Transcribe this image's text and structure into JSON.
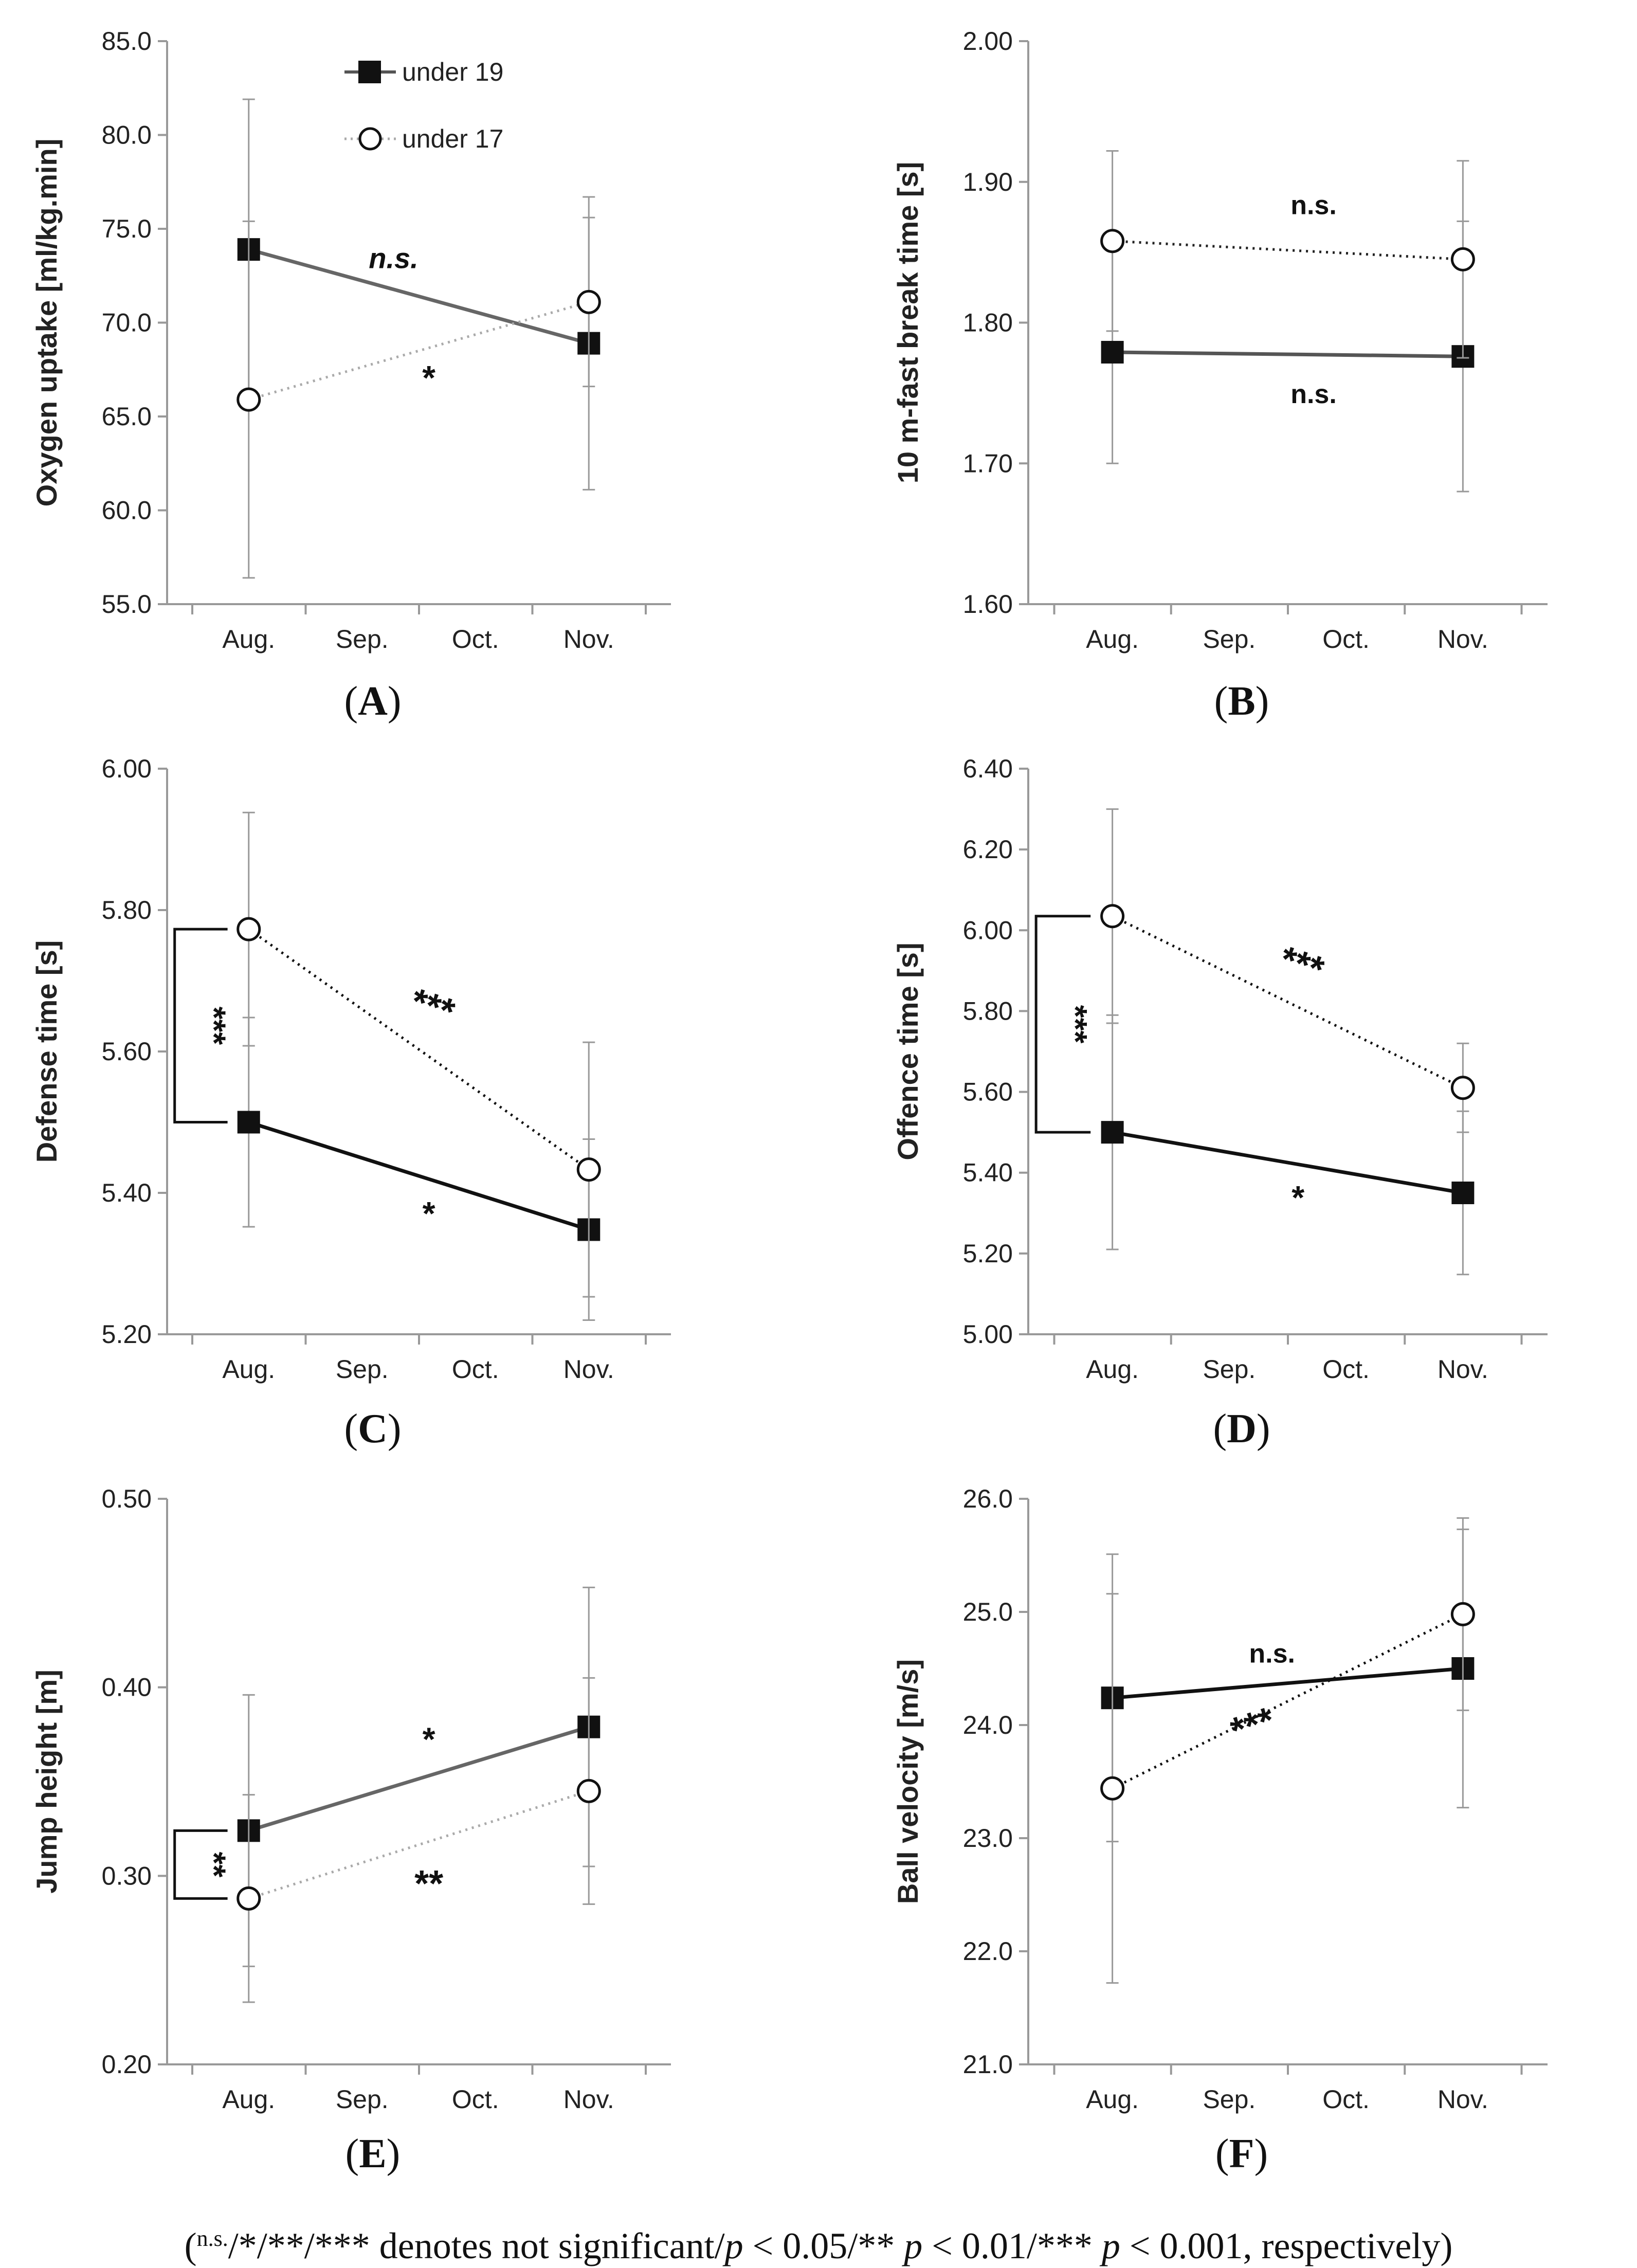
{
  "legend": {
    "series1": "under 19",
    "series2": "under 17"
  },
  "caption": {
    "prefix": "(",
    "ns": "n.s.",
    "rest": "/*/**/*** denotes not significant/",
    "p1": "p",
    "t1": " < 0.05/** ",
    "p2": "p",
    "t2": " < 0.01/*** ",
    "p3": "p",
    "t3": " < 0.001, respectively)"
  },
  "chart_data": [
    {
      "panel": "A",
      "panel_label_open": "(",
      "panel_label_close": ")",
      "type": "line",
      "ylabel": "Oxygen uptake [ml/kg.min]",
      "categories": [
        "Aug.",
        "Sep.",
        "Oct.",
        "Nov."
      ],
      "ylim": [
        55.0,
        85.0
      ],
      "yticks": [
        "55.0",
        "60.0",
        "65.0",
        "70.0",
        "75.0",
        "80.0",
        "85.0"
      ],
      "series": [
        {
          "name": "under 19",
          "marker": "square",
          "line": "solid",
          "color": "#666666",
          "x": [
            "Aug.",
            "Nov."
          ],
          "values": [
            73.9,
            68.9
          ],
          "err_low": [
            65.9,
            61.1
          ],
          "err_high": [
            81.9,
            76.7
          ],
          "sig": "n.s."
        },
        {
          "name": "under 17",
          "marker": "circle",
          "line": "dotted",
          "color": "#aaaaaa",
          "x": [
            "Aug.",
            "Nov."
          ],
          "values": [
            65.9,
            71.1
          ],
          "err_low": [
            56.4,
            66.6
          ],
          "err_high": [
            75.4,
            75.6
          ],
          "sig": "*"
        }
      ],
      "group_diff": null
    },
    {
      "panel": "B",
      "panel_label_open": "(",
      "panel_label_close": ")",
      "type": "line",
      "ylabel": "10 m-fast break time [s]",
      "categories": [
        "Aug.",
        "Sep.",
        "Oct.",
        "Nov."
      ],
      "ylim": [
        1.6,
        2.0
      ],
      "yticks": [
        "1.60",
        "1.70",
        "1.80",
        "1.90",
        "2.00"
      ],
      "series": [
        {
          "name": "under 19",
          "marker": "square",
          "line": "solid",
          "color": "#555555",
          "x": [
            "Aug.",
            "Nov."
          ],
          "values": [
            1.779,
            1.776
          ],
          "err_low": [
            1.7,
            1.68
          ],
          "err_high": [
            1.858,
            1.872
          ],
          "sig": "n.s."
        },
        {
          "name": "under 17",
          "marker": "circle",
          "line": "dotted",
          "color": "#222222",
          "x": [
            "Aug.",
            "Nov."
          ],
          "values": [
            1.858,
            1.845
          ],
          "err_low": [
            1.794,
            1.775
          ],
          "err_high": [
            1.922,
            1.915
          ],
          "sig": "n.s."
        }
      ],
      "group_diff": null
    },
    {
      "panel": "C",
      "panel_label_open": "(",
      "panel_label_close": ")",
      "type": "line",
      "ylabel": "Defense time [s]",
      "categories": [
        "Aug.",
        "Sep.",
        "Oct.",
        "Nov."
      ],
      "ylim": [
        5.2,
        6.0
      ],
      "yticks": [
        "5.20",
        "5.40",
        "5.60",
        "5.80",
        "6.00"
      ],
      "series": [
        {
          "name": "under 19",
          "marker": "square",
          "line": "solid",
          "color": "#111111",
          "x": [
            "Aug.",
            "Nov."
          ],
          "values": [
            5.5,
            5.348
          ],
          "err_low": [
            5.352,
            5.22
          ],
          "err_high": [
            5.648,
            5.476
          ],
          "sig": "*"
        },
        {
          "name": "under 17",
          "marker": "circle",
          "line": "dotted",
          "color": "#111111",
          "x": [
            "Aug.",
            "Nov."
          ],
          "values": [
            5.773,
            5.433
          ],
          "err_low": [
            5.608,
            5.253
          ],
          "err_high": [
            5.938,
            5.613
          ],
          "sig": "***"
        }
      ],
      "group_diff": {
        "sig": "***",
        "from": 5.773,
        "to": 5.5
      }
    },
    {
      "panel": "D",
      "panel_label_open": "(",
      "panel_label_close": ")",
      "type": "line",
      "ylabel": "Offence time [s]",
      "categories": [
        "Aug.",
        "Sep.",
        "Oct.",
        "Nov."
      ],
      "ylim": [
        5.0,
        6.4
      ],
      "yticks": [
        "5.00",
        "5.20",
        "5.40",
        "5.60",
        "5.80",
        "6.00",
        "6.20",
        "6.40"
      ],
      "series": [
        {
          "name": "under 19",
          "marker": "square",
          "line": "solid",
          "color": "#111111",
          "x": [
            "Aug.",
            "Nov."
          ],
          "values": [
            5.5,
            5.35
          ],
          "err_low": [
            5.21,
            5.148
          ],
          "err_high": [
            5.79,
            5.552
          ],
          "sig": "*"
        },
        {
          "name": "under 17",
          "marker": "circle",
          "line": "dotted",
          "color": "#111111",
          "x": [
            "Aug.",
            "Nov."
          ],
          "values": [
            6.035,
            5.61
          ],
          "err_low": [
            5.77,
            5.5
          ],
          "err_high": [
            6.3,
            5.72
          ],
          "sig": "***"
        }
      ],
      "group_diff": {
        "sig": "***",
        "from": 6.035,
        "to": 5.5
      }
    },
    {
      "panel": "E",
      "panel_label_open": "(",
      "panel_label_close": ")",
      "type": "line",
      "ylabel": "Jump height [m]",
      "categories": [
        "Aug.",
        "Sep.",
        "Oct.",
        "Nov."
      ],
      "ylim": [
        0.2,
        0.5
      ],
      "yticks": [
        "0.20",
        "0.30",
        "0.40",
        "0.50"
      ],
      "series": [
        {
          "name": "under 19",
          "marker": "square",
          "line": "solid",
          "color": "#666666",
          "x": [
            "Aug.",
            "Nov."
          ],
          "values": [
            0.324,
            0.379
          ],
          "err_low": [
            0.252,
            0.305
          ],
          "err_high": [
            0.396,
            0.453
          ],
          "sig": "*"
        },
        {
          "name": "under 17",
          "marker": "circle",
          "line": "dotted",
          "color": "#aaaaaa",
          "x": [
            "Aug.",
            "Nov."
          ],
          "values": [
            0.288,
            0.345
          ],
          "err_low": [
            0.233,
            0.285
          ],
          "err_high": [
            0.343,
            0.405
          ],
          "sig": "**"
        }
      ],
      "group_diff": {
        "sig": "**",
        "from": 0.324,
        "to": 0.288
      }
    },
    {
      "panel": "F",
      "panel_label_open": "(",
      "panel_label_close": ")",
      "type": "line",
      "ylabel": "Ball velocity [m/s]",
      "categories": [
        "Aug.",
        "Sep.",
        "Oct.",
        "Nov."
      ],
      "ylim": [
        21.0,
        26.0
      ],
      "yticks": [
        "21.0",
        "22.0",
        "23.0",
        "24.0",
        "25.0",
        "26.0"
      ],
      "series": [
        {
          "name": "under 19",
          "marker": "square",
          "line": "solid",
          "color": "#111111",
          "x": [
            "Aug.",
            "Nov."
          ],
          "values": [
            24.24,
            24.5
          ],
          "err_low": [
            22.97,
            23.27
          ],
          "err_high": [
            25.51,
            25.73
          ],
          "sig": "n.s."
        },
        {
          "name": "under 17",
          "marker": "circle",
          "line": "dotted",
          "color": "#111111",
          "x": [
            "Aug.",
            "Nov."
          ],
          "values": [
            23.44,
            24.98
          ],
          "err_low": [
            21.72,
            24.13
          ],
          "err_high": [
            25.16,
            25.83
          ],
          "sig": "***"
        }
      ],
      "group_diff": null
    }
  ]
}
